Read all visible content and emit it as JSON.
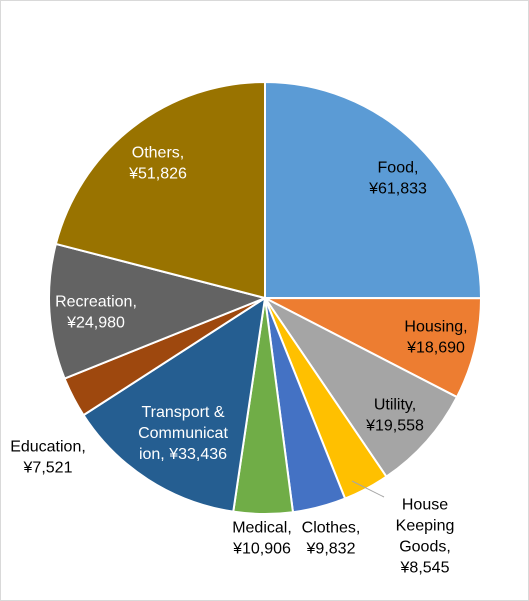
{
  "chart_data": {
    "type": "pie",
    "title": "",
    "categories": [
      "Food",
      "Housing",
      "Utility",
      "House Keeping Goods",
      "Clothes",
      "Medical",
      "Transport & Communication",
      "Education",
      "Recreation",
      "Others"
    ],
    "values": [
      61833,
      18690,
      19558,
      8545,
      9832,
      10906,
      33436,
      7521,
      24980,
      51826
    ],
    "value_labels": [
      "¥61,833",
      "¥18,690",
      "¥19,558",
      "¥8,545",
      "¥9,832",
      "¥10,906",
      "¥33,436",
      "¥7,521",
      "¥24,980",
      "¥51,826"
    ],
    "label_lines": [
      [
        "Food,",
        "¥61,833"
      ],
      [
        "Housing,",
        "¥18,690"
      ],
      [
        "Utility,",
        "¥19,558"
      ],
      [
        "House",
        "Keeping",
        "Goods,",
        "¥8,545"
      ],
      [
        "Clothes,",
        "¥9,832"
      ],
      [
        "Medical,",
        "¥10,906"
      ],
      [
        "Transport &",
        "Communicat",
        "ion, ¥33,436"
      ],
      [
        "Education,",
        "¥7,521"
      ],
      [
        "Recreation,",
        "¥24,980"
      ],
      [
        "Others,",
        "¥51,826"
      ]
    ],
    "colors": [
      "#5b9bd5",
      "#ed7d31",
      "#a5a5a5",
      "#ffc000",
      "#4472c4",
      "#70ad47",
      "#255e91",
      "#9e480e",
      "#636363",
      "#997300"
    ],
    "label_colors": [
      "#000000",
      "#000000",
      "#000000",
      "#000000",
      "#000000",
      "#000000",
      "#ffffff",
      "#000000",
      "#ffffff",
      "#ffffff"
    ],
    "start_angle": "12 o'clock",
    "direction": "clockwise",
    "legend": "none"
  }
}
